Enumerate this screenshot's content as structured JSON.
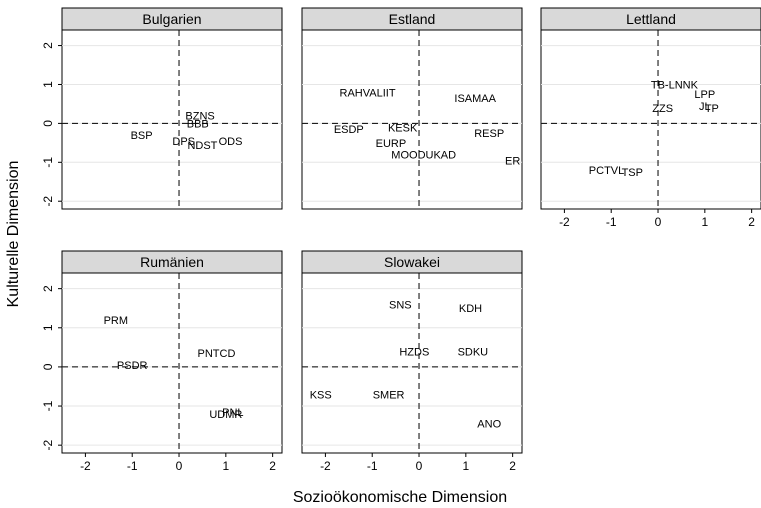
{
  "chart_data": {
    "type": "scatter",
    "xlabel": "Sozioökonomische Dimension",
    "ylabel": "Kulturelle Dimension",
    "xlim": [
      -2.5,
      2.2
    ],
    "ylim": [
      -2.2,
      2.4
    ],
    "xticks": [
      -2,
      -1,
      0,
      1,
      2
    ],
    "yticks": [
      -2,
      -1,
      0,
      1,
      2
    ],
    "grid": true,
    "reference_lines": {
      "x": 0,
      "y": 0,
      "style": "dashed"
    },
    "panels": [
      {
        "title": "Bulgarien",
        "points": [
          {
            "label": "BZNS",
            "x": 0.45,
            "y": 0.2
          },
          {
            "label": "BBB",
            "x": 0.4,
            "y": -0.0
          },
          {
            "label": "BSP",
            "x": -0.8,
            "y": -0.3
          },
          {
            "label": "DPS",
            "x": 0.1,
            "y": -0.45
          },
          {
            "label": "NDST",
            "x": 0.5,
            "y": -0.55
          },
          {
            "label": "ODS",
            "x": 1.1,
            "y": -0.45
          }
        ]
      },
      {
        "title": "Estland",
        "points": [
          {
            "label": "RAHVALIIT",
            "x": -1.1,
            "y": 0.8
          },
          {
            "label": "ISAMAA",
            "x": 1.2,
            "y": 0.65
          },
          {
            "label": "ESDP",
            "x": -1.5,
            "y": -0.15
          },
          {
            "label": "KESK",
            "x": -0.35,
            "y": -0.1
          },
          {
            "label": "RESP",
            "x": 1.5,
            "y": -0.25
          },
          {
            "label": "EURP",
            "x": -0.6,
            "y": -0.5
          },
          {
            "label": "MOODUKAD",
            "x": 0.1,
            "y": -0.8
          },
          {
            "label": "ER",
            "x": 2.0,
            "y": -0.95
          }
        ]
      },
      {
        "title": "Lettland",
        "points": [
          {
            "label": "TB-LNNK",
            "x": 0.35,
            "y": 1.0
          },
          {
            "label": "LPP",
            "x": 1.0,
            "y": 0.75
          },
          {
            "label": "JL",
            "x": 1.0,
            "y": 0.45
          },
          {
            "label": "TP",
            "x": 1.15,
            "y": 0.4
          },
          {
            "label": "ZZS",
            "x": 0.1,
            "y": 0.4
          },
          {
            "label": "PCTVL",
            "x": -1.1,
            "y": -1.2
          },
          {
            "label": "TSP",
            "x": -0.55,
            "y": -1.25
          }
        ]
      },
      {
        "title": "Rumänien",
        "points": [
          {
            "label": "PRM",
            "x": -1.35,
            "y": 1.2
          },
          {
            "label": "PSDR",
            "x": -1.0,
            "y": 0.05
          },
          {
            "label": "PNTCD",
            "x": 0.8,
            "y": 0.35
          },
          {
            "label": "UDMR",
            "x": 1.0,
            "y": -1.2
          },
          {
            "label": "PNL",
            "x": 1.15,
            "y": -1.15
          }
        ]
      },
      {
        "title": "Slowakei",
        "points": [
          {
            "label": "SNS",
            "x": -0.4,
            "y": 1.6
          },
          {
            "label": "KDH",
            "x": 1.1,
            "y": 1.5
          },
          {
            "label": "HZDS",
            "x": -0.1,
            "y": 0.4
          },
          {
            "label": "SDKU",
            "x": 1.15,
            "y": 0.4
          },
          {
            "label": "KSS",
            "x": -2.1,
            "y": -0.7
          },
          {
            "label": "SMER",
            "x": -0.65,
            "y": -0.7
          },
          {
            "label": "ANO",
            "x": 1.5,
            "y": -1.45
          }
        ]
      }
    ]
  }
}
